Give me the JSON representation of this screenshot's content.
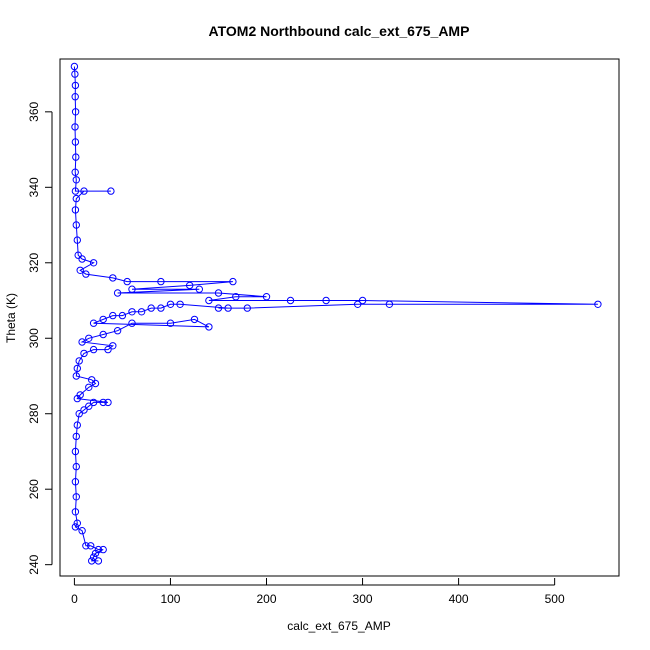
{
  "chart_data": {
    "type": "scatter",
    "title": "ATOM2 Northbound calc_ext_675_AMP",
    "xlabel": "calc_ext_675_AMP",
    "ylabel": "Theta (K)",
    "xlim": [
      -15,
      567
    ],
    "ylim": [
      237,
      374
    ],
    "xticks": [
      0,
      100,
      200,
      300,
      400,
      500
    ],
    "yticks": [
      240,
      260,
      280,
      300,
      320,
      340,
      360
    ],
    "grid": false,
    "legend": "none",
    "point_style": "open-circle",
    "line_connected": true,
    "color": "#0000ff",
    "series": [
      {
        "points": [
          [
            0,
            372
          ],
          [
            0.5,
            370
          ],
          [
            1,
            367
          ],
          [
            0.8,
            364
          ],
          [
            1.2,
            360
          ],
          [
            0.6,
            356
          ],
          [
            1,
            352
          ],
          [
            1.5,
            348
          ],
          [
            0.8,
            344
          ],
          [
            2,
            342
          ],
          [
            1,
            339
          ],
          [
            38,
            339
          ],
          [
            10,
            339
          ],
          [
            2,
            337
          ],
          [
            1,
            334
          ],
          [
            2,
            330
          ],
          [
            3,
            326
          ],
          [
            4,
            322
          ],
          [
            8,
            321
          ],
          [
            20,
            320
          ],
          [
            6,
            318
          ],
          [
            12,
            317
          ],
          [
            40,
            316
          ],
          [
            55,
            315
          ],
          [
            90,
            315
          ],
          [
            165,
            315
          ],
          [
            120,
            314
          ],
          [
            60,
            313
          ],
          [
            130,
            313
          ],
          [
            45,
            312
          ],
          [
            150,
            312
          ],
          [
            200,
            311
          ],
          [
            168,
            311
          ],
          [
            140,
            310
          ],
          [
            225,
            310
          ],
          [
            262,
            310
          ],
          [
            300,
            310
          ],
          [
            545,
            309
          ],
          [
            328,
            309
          ],
          [
            295,
            309
          ],
          [
            180,
            308
          ],
          [
            150,
            308
          ],
          [
            160,
            308
          ],
          [
            110,
            309
          ],
          [
            100,
            309
          ],
          [
            90,
            308
          ],
          [
            80,
            308
          ],
          [
            70,
            307
          ],
          [
            60,
            307
          ],
          [
            50,
            306
          ],
          [
            40,
            306
          ],
          [
            30,
            305
          ],
          [
            20,
            304
          ],
          [
            140,
            303
          ],
          [
            125,
            305
          ],
          [
            100,
            304
          ],
          [
            60,
            304
          ],
          [
            45,
            302
          ],
          [
            30,
            301
          ],
          [
            15,
            300
          ],
          [
            8,
            299
          ],
          [
            40,
            298
          ],
          [
            35,
            297
          ],
          [
            20,
            297
          ],
          [
            10,
            296
          ],
          [
            5,
            294
          ],
          [
            3,
            292
          ],
          [
            2,
            290
          ],
          [
            18,
            289
          ],
          [
            22,
            288
          ],
          [
            15,
            287
          ],
          [
            6,
            285
          ],
          [
            3,
            284
          ],
          [
            35,
            283
          ],
          [
            30,
            283
          ],
          [
            20,
            283
          ],
          [
            15,
            282
          ],
          [
            10,
            281
          ],
          [
            5,
            280
          ],
          [
            3,
            277
          ],
          [
            2,
            274
          ],
          [
            1,
            270
          ],
          [
            2,
            266
          ],
          [
            1,
            262
          ],
          [
            2,
            258
          ],
          [
            1,
            254
          ],
          [
            3,
            251
          ],
          [
            1,
            250
          ],
          [
            8,
            249
          ],
          [
            12,
            245
          ],
          [
            17,
            245
          ],
          [
            25,
            244
          ],
          [
            30,
            244
          ],
          [
            22,
            243
          ],
          [
            20,
            242
          ],
          [
            18,
            241
          ],
          [
            25,
            241
          ]
        ]
      }
    ]
  }
}
